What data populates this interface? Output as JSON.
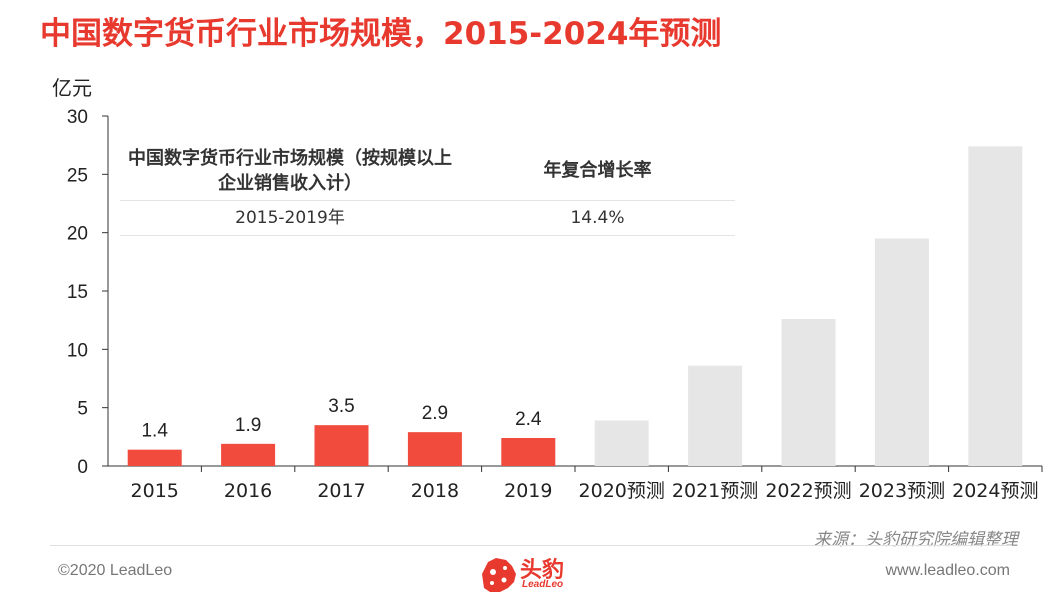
{
  "title": "中国数字货币行业市场规模，2015-2024年预测",
  "unit_label": "亿元",
  "chart_data": {
    "type": "bar",
    "categories": [
      "2015",
      "2016",
      "2017",
      "2018",
      "2019",
      "2020预测",
      "2021预测",
      "2022预测",
      "2023预测",
      "2024预测"
    ],
    "values": [
      1.4,
      1.9,
      3.5,
      2.9,
      2.4,
      3.9,
      8.6,
      12.6,
      19.5,
      27.4
    ],
    "data_labels": [
      "1.4",
      "1.9",
      "3.5",
      "2.9",
      "2.4",
      "",
      "",
      "",
      "",
      ""
    ],
    "ylim": [
      0,
      30
    ],
    "yticks": [
      0,
      5,
      10,
      15,
      20,
      25,
      30
    ],
    "colors": {
      "actual": "#f04b3c",
      "forecast": "#e6e6e6"
    },
    "forecast_start_index": 5,
    "grid": false,
    "legend": "none"
  },
  "cagr_table": {
    "col1_header": "中国数字货币行业市场规模（按规模以上企业销售收入计）",
    "col2_header": "年复合增长率",
    "rows": [
      {
        "period": "2015-2019年",
        "rate": "14.4%"
      }
    ]
  },
  "source": "来源：头豹研究院编辑整理",
  "footer": {
    "copyright": "©2020 LeadLeo",
    "logo_cn": "头豹",
    "logo_en": "LeadLeo",
    "website": "www.leadleo.com"
  }
}
